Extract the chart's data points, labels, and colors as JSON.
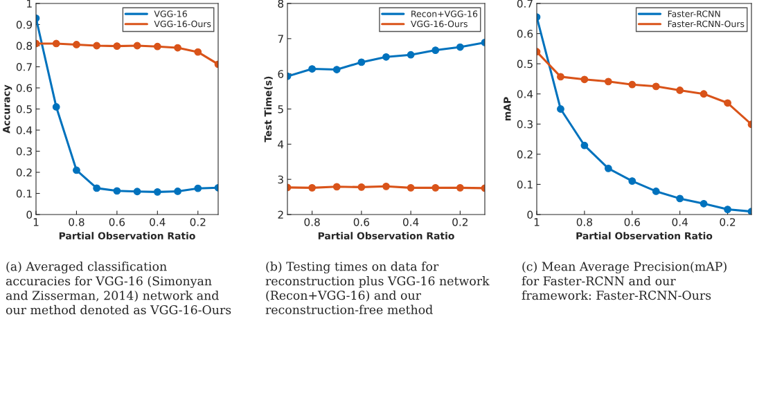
{
  "chart_data": [
    {
      "type": "line",
      "xlabel": "Partial Observation Ratio",
      "ylabel": "Accuracy",
      "x": [
        1,
        0.9,
        0.8,
        0.7,
        0.6,
        0.5,
        0.4,
        0.3,
        0.2,
        0.1
      ],
      "xlim": [
        1,
        0.1
      ],
      "xticks": [
        1,
        0.8,
        0.6,
        0.4,
        0.2
      ],
      "ylim": [
        0,
        1
      ],
      "yticks": [
        0,
        0.1,
        0.2,
        0.3,
        0.4,
        0.5,
        0.6,
        0.7,
        0.8,
        0.9,
        1
      ],
      "marker": "circle",
      "legend": "top right",
      "grid": false,
      "series": [
        {
          "name": "VGG-16",
          "color": "#0072bd",
          "values": [
            0.93,
            0.51,
            0.21,
            0.125,
            0.112,
            0.109,
            0.107,
            0.11,
            0.124,
            0.127
          ]
        },
        {
          "name": "VGG-16-Ours",
          "color": "#d95319",
          "values": [
            0.81,
            0.81,
            0.805,
            0.8,
            0.798,
            0.8,
            0.796,
            0.79,
            0.77,
            0.712
          ]
        }
      ],
      "annotations": [
        "(a) Averaged classification accuracies for VGG-16 (Simonyan and Zisserman, 2014) network and our method denoted as VGG-16-Ours"
      ]
    },
    {
      "type": "line",
      "xlabel": "Partial Observation Ratio",
      "ylabel": "Test Time(s)",
      "x": [
        0.9,
        0.8,
        0.7,
        0.6,
        0.5,
        0.4,
        0.3,
        0.2,
        0.1
      ],
      "xlim": [
        0.9,
        0.1
      ],
      "xticks": [
        0.8,
        0.6,
        0.4,
        0.2
      ],
      "ylim": [
        2,
        8
      ],
      "yticks": [
        2,
        3,
        4,
        5,
        6,
        7,
        8
      ],
      "marker": "circle",
      "legend": "top right",
      "grid": false,
      "series": [
        {
          "name": "Recon+VGG-16",
          "color": "#0072bd",
          "values": [
            5.93,
            6.14,
            6.12,
            6.33,
            6.48,
            6.54,
            6.67,
            6.76,
            6.89
          ]
        },
        {
          "name": "VGG-16-Ours",
          "color": "#d95319",
          "values": [
            2.77,
            2.76,
            2.79,
            2.78,
            2.8,
            2.76,
            2.76,
            2.76,
            2.75
          ]
        }
      ],
      "annotations": [
        "(b) Testing times on data for reconstruction plus VGG-16 network (Recon+VGG-16) and our reconstruction-free method"
      ]
    },
    {
      "type": "line",
      "xlabel": "Partial Observation Ratio",
      "ylabel": "mAP",
      "x": [
        1,
        0.9,
        0.8,
        0.7,
        0.6,
        0.5,
        0.4,
        0.3,
        0.2,
        0.1
      ],
      "xlim": [
        1,
        0.1
      ],
      "xticks": [
        1,
        0.8,
        0.6,
        0.4,
        0.2
      ],
      "ylim": [
        0,
        0.7
      ],
      "yticks": [
        0,
        0.1,
        0.2,
        0.3,
        0.4,
        0.5,
        0.6,
        0.7
      ],
      "marker": "circle",
      "legend": "top right",
      "grid": false,
      "series": [
        {
          "name": "Faster-RCNN",
          "color": "#0072bd",
          "values": [
            0.655,
            0.35,
            0.229,
            0.153,
            0.111,
            0.077,
            0.053,
            0.036,
            0.017,
            0.01
          ]
        },
        {
          "name": "Faster-RCNN-Ours",
          "color": "#d95319",
          "values": [
            0.54,
            0.457,
            0.448,
            0.441,
            0.431,
            0.425,
            0.412,
            0.4,
            0.37,
            0.299
          ]
        }
      ],
      "annotations": [
        "(c) Mean Average Precision(mAP) for Faster-RCNN and our framework: Faster-RCNN-Ours"
      ]
    }
  ]
}
